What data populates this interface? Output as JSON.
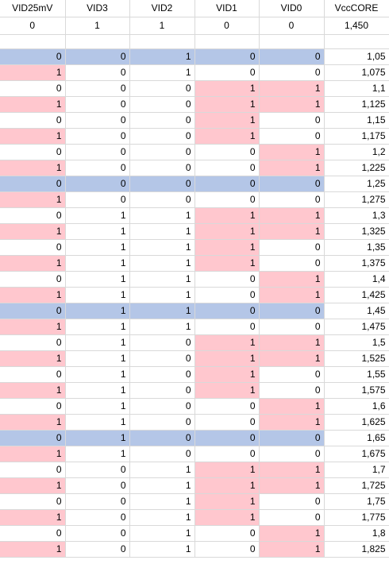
{
  "headers": [
    "VID25mV",
    "VID3",
    "VID2",
    "VID1",
    "VID0",
    "VccCORE"
  ],
  "initial_row": [
    "0",
    "1",
    "1",
    "0",
    "0",
    "1,450"
  ],
  "rows": [
    {
      "v": [
        "0",
        "0",
        "1",
        "0",
        "0",
        "1,05"
      ],
      "hl": [
        "b",
        "b",
        "b",
        "b",
        "b",
        ""
      ]
    },
    {
      "v": [
        "1",
        "0",
        "1",
        "0",
        "0",
        "1,075"
      ],
      "hl": [
        "p",
        "",
        "",
        "",
        "",
        ""
      ]
    },
    {
      "v": [
        "0",
        "0",
        "0",
        "1",
        "1",
        "1,1"
      ],
      "hl": [
        "",
        "",
        "",
        "p",
        "p",
        ""
      ]
    },
    {
      "v": [
        "1",
        "0",
        "0",
        "1",
        "1",
        "1,125"
      ],
      "hl": [
        "p",
        "",
        "",
        "p",
        "p",
        ""
      ]
    },
    {
      "v": [
        "0",
        "0",
        "0",
        "1",
        "0",
        "1,15"
      ],
      "hl": [
        "",
        "",
        "",
        "p",
        "",
        ""
      ]
    },
    {
      "v": [
        "1",
        "0",
        "0",
        "1",
        "0",
        "1,175"
      ],
      "hl": [
        "p",
        "",
        "",
        "p",
        "",
        ""
      ]
    },
    {
      "v": [
        "0",
        "0",
        "0",
        "0",
        "1",
        "1,2"
      ],
      "hl": [
        "",
        "",
        "",
        "",
        "p",
        ""
      ]
    },
    {
      "v": [
        "1",
        "0",
        "0",
        "0",
        "1",
        "1,225"
      ],
      "hl": [
        "p",
        "",
        "",
        "",
        "p",
        ""
      ]
    },
    {
      "v": [
        "0",
        "0",
        "0",
        "0",
        "0",
        "1,25"
      ],
      "hl": [
        "b",
        "b",
        "b",
        "b",
        "b",
        ""
      ]
    },
    {
      "v": [
        "1",
        "0",
        "0",
        "0",
        "0",
        "1,275"
      ],
      "hl": [
        "p",
        "",
        "",
        "",
        "",
        ""
      ]
    },
    {
      "v": [
        "0",
        "1",
        "1",
        "1",
        "1",
        "1,3"
      ],
      "hl": [
        "",
        "",
        "",
        "p",
        "p",
        ""
      ]
    },
    {
      "v": [
        "1",
        "1",
        "1",
        "1",
        "1",
        "1,325"
      ],
      "hl": [
        "p",
        "",
        "",
        "p",
        "p",
        ""
      ]
    },
    {
      "v": [
        "0",
        "1",
        "1",
        "1",
        "0",
        "1,35"
      ],
      "hl": [
        "",
        "",
        "",
        "p",
        "",
        ""
      ]
    },
    {
      "v": [
        "1",
        "1",
        "1",
        "1",
        "0",
        "1,375"
      ],
      "hl": [
        "p",
        "",
        "",
        "p",
        "",
        ""
      ]
    },
    {
      "v": [
        "0",
        "1",
        "1",
        "0",
        "1",
        "1,4"
      ],
      "hl": [
        "",
        "",
        "",
        "",
        "p",
        ""
      ]
    },
    {
      "v": [
        "1",
        "1",
        "1",
        "0",
        "1",
        "1,425"
      ],
      "hl": [
        "p",
        "",
        "",
        "",
        "p",
        ""
      ]
    },
    {
      "v": [
        "0",
        "1",
        "1",
        "0",
        "0",
        "1,45"
      ],
      "hl": [
        "b",
        "b",
        "b",
        "b",
        "b",
        ""
      ]
    },
    {
      "v": [
        "1",
        "1",
        "1",
        "0",
        "0",
        "1,475"
      ],
      "hl": [
        "p",
        "",
        "",
        "",
        "",
        ""
      ]
    },
    {
      "v": [
        "0",
        "1",
        "0",
        "1",
        "1",
        "1,5"
      ],
      "hl": [
        "",
        "",
        "",
        "p",
        "p",
        ""
      ]
    },
    {
      "v": [
        "1",
        "1",
        "0",
        "1",
        "1",
        "1,525"
      ],
      "hl": [
        "p",
        "",
        "",
        "p",
        "p",
        ""
      ]
    },
    {
      "v": [
        "0",
        "1",
        "0",
        "1",
        "0",
        "1,55"
      ],
      "hl": [
        "",
        "",
        "",
        "p",
        "",
        ""
      ]
    },
    {
      "v": [
        "1",
        "1",
        "0",
        "1",
        "0",
        "1,575"
      ],
      "hl": [
        "p",
        "",
        "",
        "p",
        "",
        ""
      ]
    },
    {
      "v": [
        "0",
        "1",
        "0",
        "0",
        "1",
        "1,6"
      ],
      "hl": [
        "",
        "",
        "",
        "",
        "p",
        ""
      ]
    },
    {
      "v": [
        "1",
        "1",
        "0",
        "0",
        "1",
        "1,625"
      ],
      "hl": [
        "p",
        "",
        "",
        "",
        "p",
        ""
      ]
    },
    {
      "v": [
        "0",
        "1",
        "0",
        "0",
        "0",
        "1,65"
      ],
      "hl": [
        "b",
        "b",
        "b",
        "b",
        "b",
        ""
      ]
    },
    {
      "v": [
        "1",
        "1",
        "0",
        "0",
        "0",
        "1,675"
      ],
      "hl": [
        "p",
        "",
        "",
        "",
        "",
        ""
      ]
    },
    {
      "v": [
        "0",
        "0",
        "1",
        "1",
        "1",
        "1,7"
      ],
      "hl": [
        "",
        "",
        "",
        "p",
        "p",
        ""
      ]
    },
    {
      "v": [
        "1",
        "0",
        "1",
        "1",
        "1",
        "1,725"
      ],
      "hl": [
        "p",
        "",
        "",
        "p",
        "p",
        ""
      ]
    },
    {
      "v": [
        "0",
        "0",
        "1",
        "1",
        "0",
        "1,75"
      ],
      "hl": [
        "",
        "",
        "",
        "p",
        "",
        ""
      ]
    },
    {
      "v": [
        "1",
        "0",
        "1",
        "1",
        "0",
        "1,775"
      ],
      "hl": [
        "p",
        "",
        "",
        "p",
        "",
        ""
      ]
    },
    {
      "v": [
        "0",
        "0",
        "1",
        "0",
        "1",
        "1,8"
      ],
      "hl": [
        "",
        "",
        "",
        "",
        "p",
        ""
      ]
    },
    {
      "v": [
        "1",
        "0",
        "1",
        "0",
        "1",
        "1,825"
      ],
      "hl": [
        "p",
        "",
        "",
        "",
        "p",
        ""
      ]
    }
  ],
  "colors": {
    "blue": "#b4c6e7",
    "pink": "#ffc7ce",
    "grid": "#d9d9d9"
  }
}
